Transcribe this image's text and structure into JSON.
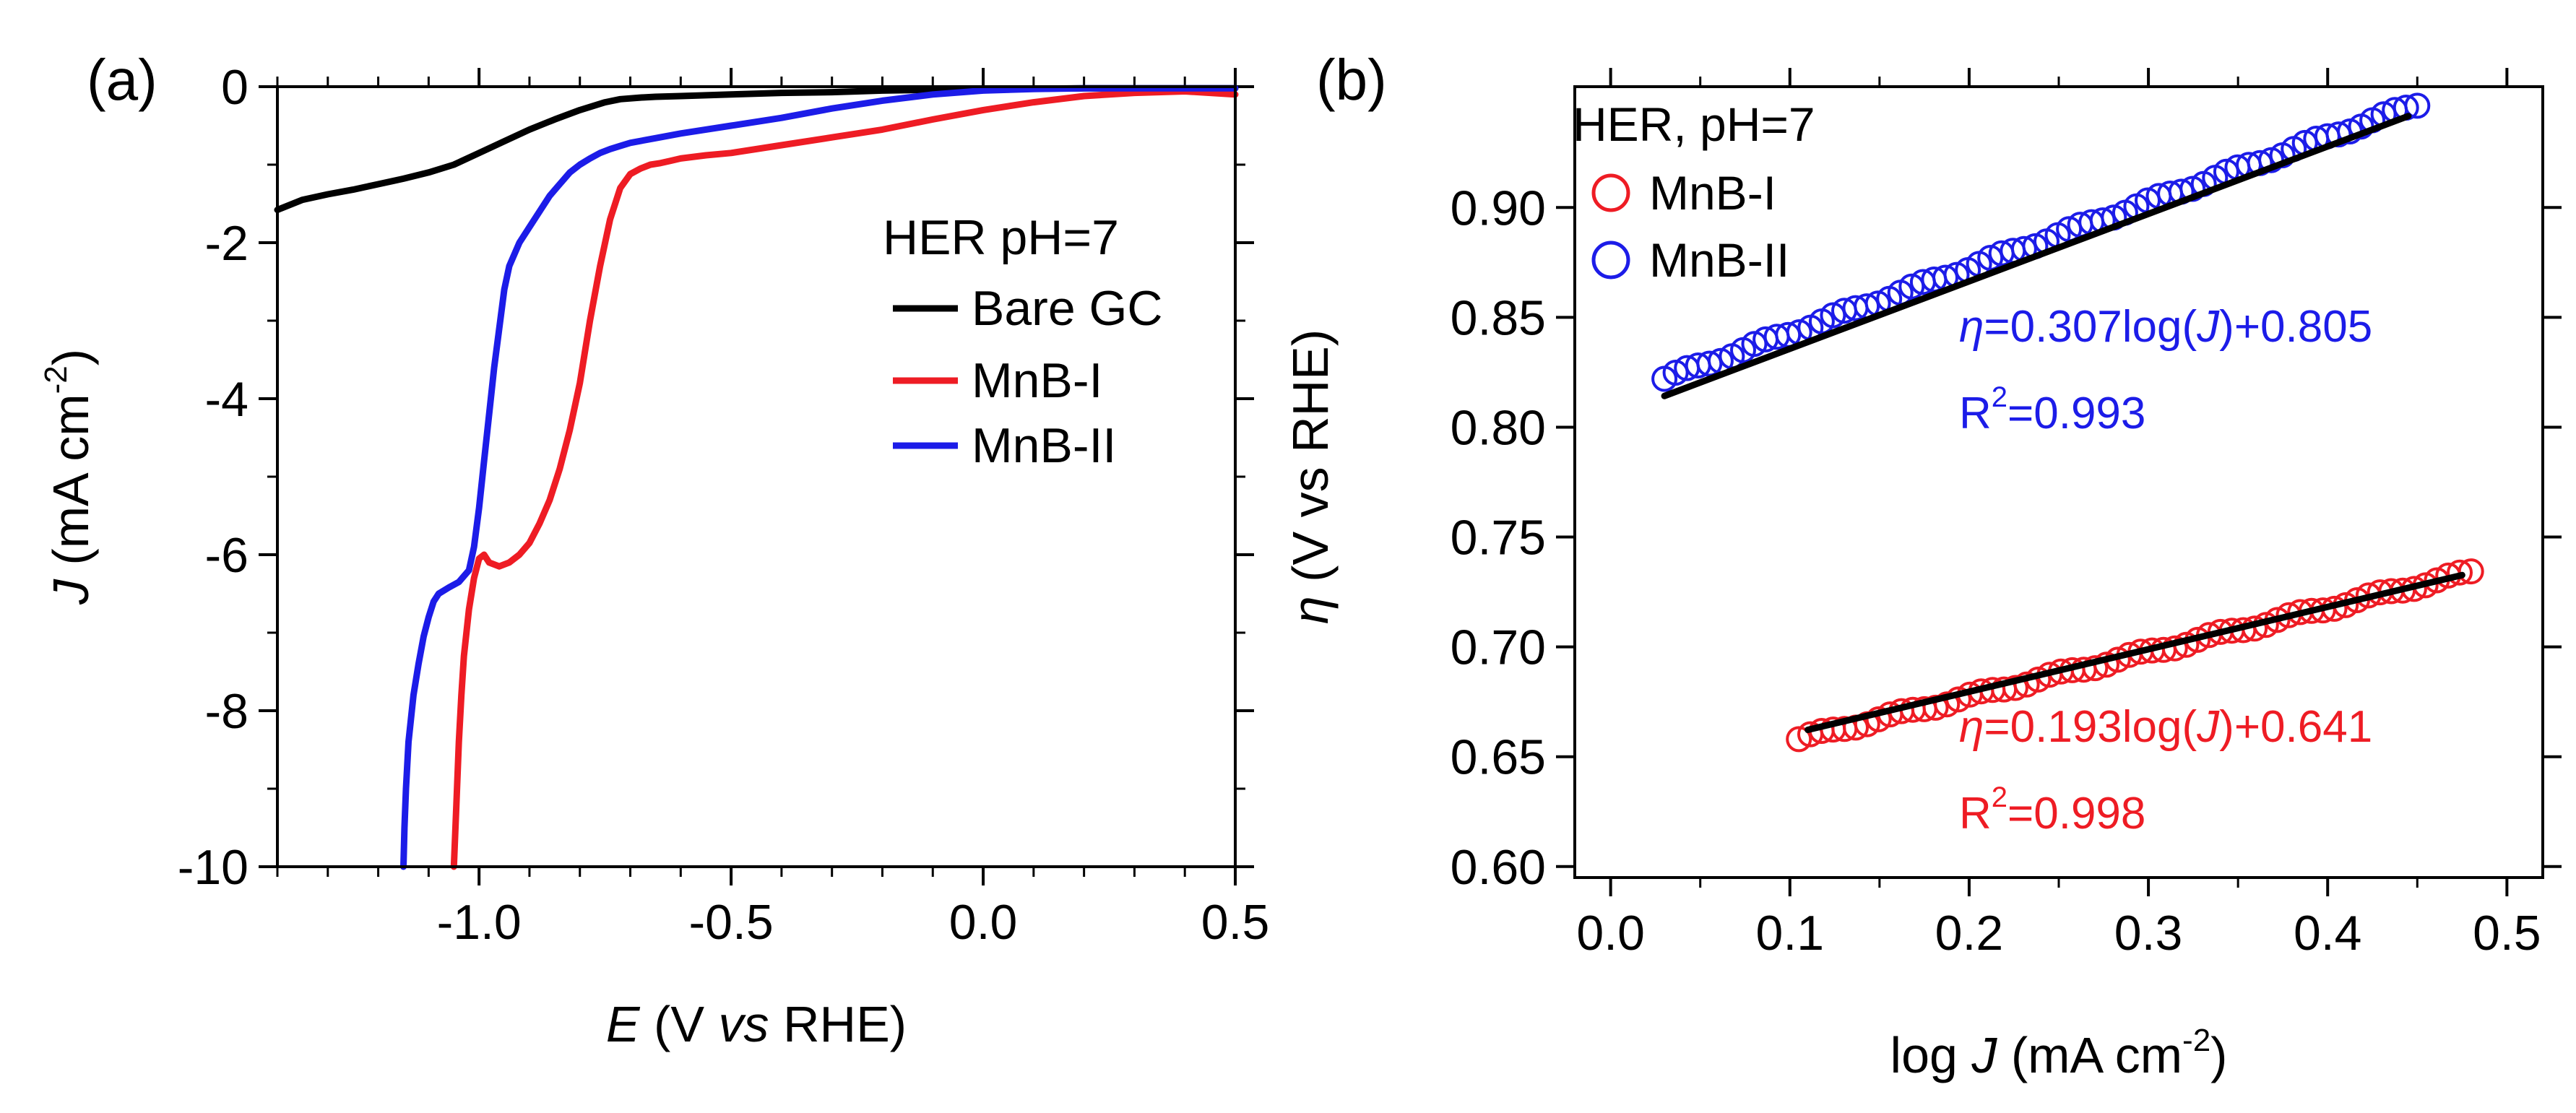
{
  "chart_data": [
    {
      "type": "line",
      "panel_label": "(a)",
      "xlabel": {
        "italic": "E",
        "rest": " (V ",
        "italic2": "vs",
        "rest2": " RHE)"
      },
      "ylabel": {
        "italic": "J",
        "rest": " (mA cm",
        "sup": "-2",
        "close": ")"
      },
      "xlim": [
        -1.4,
        0.5
      ],
      "ylim": [
        -10,
        0
      ],
      "xticks": [
        -1.0,
        -0.5,
        0.0,
        0.5
      ],
      "xtick_labels": [
        "-1.0",
        "-0.5",
        "0.0",
        "0.5"
      ],
      "yticks": [
        0,
        -2,
        -4,
        -6,
        -8,
        -10
      ],
      "ytick_labels": [
        "0",
        "-2",
        "-4",
        "-6",
        "-8",
        "-10"
      ],
      "legend_title": "HER pH=7",
      "legend_position": "right",
      "series": [
        {
          "name": "Bare GC",
          "color": "#000000",
          "x": [
            -1.4,
            -1.35,
            -1.3,
            -1.25,
            -1.2,
            -1.15,
            -1.1,
            -1.05,
            -1.0,
            -0.95,
            -0.9,
            -0.85,
            -0.8,
            -0.75,
            -0.72,
            -0.68,
            -0.65,
            -0.6,
            -0.5,
            -0.4,
            -0.3,
            -0.2,
            -0.1,
            0.0,
            0.2,
            0.5
          ],
          "y": [
            -1.58,
            -1.45,
            -1.38,
            -1.32,
            -1.25,
            -1.18,
            -1.1,
            -1.0,
            -0.85,
            -0.7,
            -0.55,
            -0.42,
            -0.3,
            -0.2,
            -0.16,
            -0.14,
            -0.13,
            -0.12,
            -0.1,
            -0.08,
            -0.07,
            -0.05,
            -0.04,
            -0.03,
            -0.02,
            -0.02
          ]
        },
        {
          "name": "MnB-I",
          "color": "#ee1c24",
          "x": [
            -1.05,
            -1.045,
            -1.04,
            -1.035,
            -1.03,
            -1.025,
            -1.02,
            -1.01,
            -1.0,
            -0.99,
            -0.98,
            -0.96,
            -0.94,
            -0.92,
            -0.9,
            -0.88,
            -0.86,
            -0.84,
            -0.82,
            -0.8,
            -0.78,
            -0.76,
            -0.74,
            -0.72,
            -0.7,
            -0.68,
            -0.66,
            -0.64,
            -0.62,
            -0.6,
            -0.55,
            -0.5,
            -0.4,
            -0.3,
            -0.2,
            -0.1,
            0.0,
            0.1,
            0.2,
            0.3,
            0.4,
            0.5
          ],
          "y": [
            -10.0,
            -9.2,
            -8.4,
            -7.8,
            -7.3,
            -7.0,
            -6.7,
            -6.3,
            -6.05,
            -6.0,
            -6.1,
            -6.15,
            -6.1,
            -6.0,
            -5.85,
            -5.6,
            -5.3,
            -4.9,
            -4.4,
            -3.8,
            -3.0,
            -2.3,
            -1.7,
            -1.3,
            -1.12,
            -1.05,
            -1.0,
            -0.98,
            -0.95,
            -0.92,
            -0.88,
            -0.85,
            -0.75,
            -0.65,
            -0.55,
            -0.42,
            -0.3,
            -0.2,
            -0.12,
            -0.08,
            -0.06,
            -0.1
          ]
        },
        {
          "name": "MnB-II",
          "color": "#1c1ce8",
          "x": [
            -1.15,
            -1.148,
            -1.145,
            -1.14,
            -1.13,
            -1.12,
            -1.11,
            -1.1,
            -1.09,
            -1.08,
            -1.06,
            -1.04,
            -1.02,
            -1.01,
            -1.0,
            -0.99,
            -0.98,
            -0.97,
            -0.96,
            -0.95,
            -0.94,
            -0.92,
            -0.9,
            -0.88,
            -0.86,
            -0.84,
            -0.82,
            -0.8,
            -0.78,
            -0.76,
            -0.74,
            -0.72,
            -0.7,
            -0.65,
            -0.6,
            -0.5,
            -0.4,
            -0.3,
            -0.2,
            -0.1,
            0.0,
            0.1,
            0.2,
            0.3,
            0.4,
            0.5
          ],
          "y": [
            -10.0,
            -9.5,
            -9.0,
            -8.4,
            -7.8,
            -7.4,
            -7.05,
            -6.8,
            -6.6,
            -6.5,
            -6.42,
            -6.35,
            -6.2,
            -5.9,
            -5.4,
            -4.8,
            -4.2,
            -3.6,
            -3.1,
            -2.6,
            -2.3,
            -2.0,
            -1.8,
            -1.6,
            -1.4,
            -1.25,
            -1.1,
            -1.0,
            -0.92,
            -0.85,
            -0.8,
            -0.76,
            -0.72,
            -0.66,
            -0.6,
            -0.5,
            -0.4,
            -0.28,
            -0.18,
            -0.1,
            -0.05,
            -0.03,
            -0.02,
            -0.02,
            -0.02,
            -0.02
          ]
        }
      ]
    },
    {
      "type": "scatter",
      "panel_label": "(b)",
      "xlabel": {
        "pre": "log ",
        "italic": "J",
        "rest": " (mA cm",
        "sup": "-2",
        "close": ")"
      },
      "ylabel": {
        "italic": "η",
        "rest": " (V vs RHE)"
      },
      "xlim": [
        -0.02,
        0.52
      ],
      "ylim": [
        0.595,
        0.955
      ],
      "xticks": [
        0.0,
        0.1,
        0.2,
        0.3,
        0.4,
        0.5
      ],
      "xtick_labels": [
        "0.0",
        "0.1",
        "0.2",
        "0.3",
        "0.4",
        "0.5"
      ],
      "yticks": [
        0.6,
        0.65,
        0.7,
        0.75,
        0.8,
        0.85,
        0.9
      ],
      "ytick_labels": [
        "0.60",
        "0.65",
        "0.70",
        "0.75",
        "0.80",
        "0.85",
        "0.90"
      ],
      "legend_title": "HER, pH=7",
      "legend_position": "top-left",
      "series": [
        {
          "name": "MnB-I",
          "color": "#ee1c24",
          "marker": "open-circle",
          "x_range": [
            0.105,
            0.48
          ],
          "y_range": [
            0.658,
            0.734
          ],
          "n_points": 60,
          "fit": {
            "slope": 0.193,
            "intercept": 0.641,
            "x_range": [
              0.11,
              0.475
            ]
          },
          "annotation": {
            "eta": "η",
            "eq": "=0.193log(",
            "j": "J",
            "close": ")+0.641",
            "r_pre": "R",
            "r_sup": "2",
            "r_val": "=0.998"
          }
        },
        {
          "name": "MnB-II",
          "color": "#1c1ce8",
          "marker": "open-circle",
          "x_range": [
            0.03,
            0.45
          ],
          "y_range": [
            0.822,
            0.947
          ],
          "n_points": 68,
          "fit": {
            "slope": 0.307,
            "intercept": 0.805,
            "x_range": [
              0.03,
              0.445
            ]
          },
          "annotation": {
            "eta": "η",
            "eq": "=0.307log(",
            "j": "J",
            "close": ")+0.805",
            "r_pre": "R",
            "r_sup": "2",
            "r_val": "=0.993"
          }
        }
      ]
    }
  ]
}
